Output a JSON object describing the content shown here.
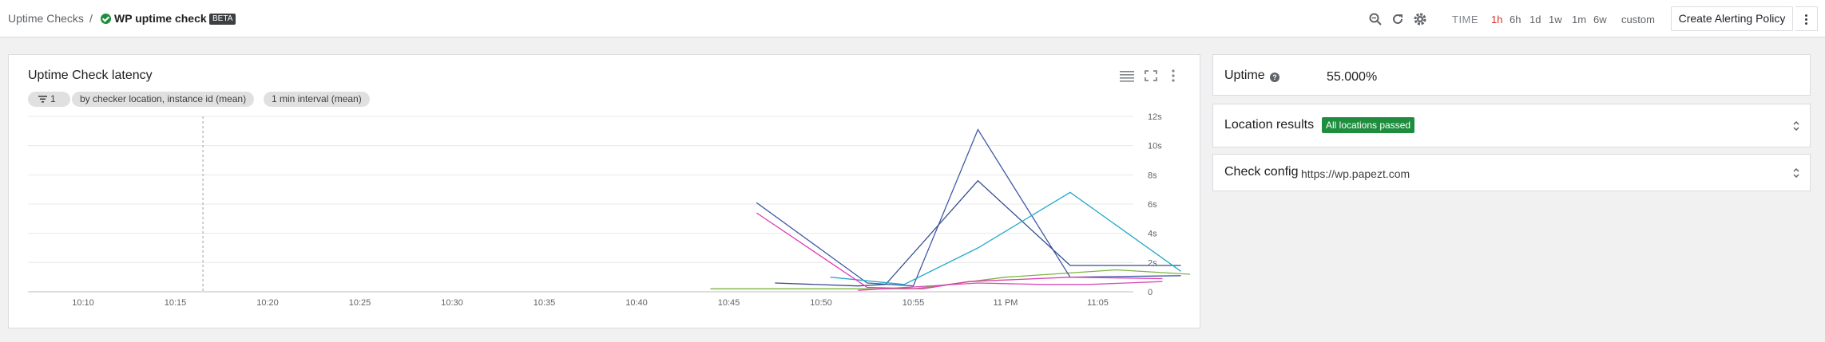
{
  "breadcrumb": {
    "parent": "Uptime Checks",
    "separator": "/",
    "current": "WP uptime check",
    "badge": "BETA"
  },
  "toolbar": {
    "icons": [
      "zoom-icon",
      "refresh-icon",
      "settings-icon"
    ],
    "time_label": "TIME",
    "ranges": [
      "1h",
      "6h",
      "1d",
      "1w",
      "1m",
      "6w",
      "custom"
    ],
    "active_range": "1h",
    "create_alert_label": "Create Alerting Policy"
  },
  "chart_card": {
    "title": "Uptime Check latency",
    "filter_count": "1",
    "group_by_chip": "by checker location, instance id (mean)",
    "interval_chip": "1 min interval (mean)",
    "icons": [
      "legend-icon",
      "fullscreen-icon",
      "more-vert-icon"
    ]
  },
  "chart_data": {
    "type": "line",
    "title": "Uptime Check latency",
    "x_ticks": [
      "10:10",
      "10:15",
      "10:20",
      "10:25",
      "10:30",
      "10:35",
      "10:40",
      "10:45",
      "10:50",
      "10:55",
      "11 PM",
      "11:05"
    ],
    "y_ticks": [
      "0",
      "2s",
      "4s",
      "6s",
      "8s",
      "10s",
      "12s"
    ],
    "ylim": [
      0,
      12
    ],
    "x_unit": "minutes after 10:10",
    "series": [
      {
        "color": "#7cb342",
        "points": [
          [
            34,
            0.2
          ],
          [
            40,
            0.2
          ],
          [
            45,
            0.2
          ],
          [
            50,
            1.0
          ],
          [
            56,
            1.5
          ],
          [
            60,
            1.2
          ]
        ]
      },
      {
        "color": "#3f5aa8",
        "points": [
          [
            36.5,
            6.1
          ],
          [
            42.5,
            0.6
          ],
          [
            45,
            0.4
          ],
          [
            48.5,
            11.1
          ],
          [
            53.5,
            1.0
          ],
          [
            59.5,
            1.1
          ]
        ]
      },
      {
        "color": "#334d8c",
        "points": [
          [
            37.5,
            0.6
          ],
          [
            42,
            0.4
          ],
          [
            43.5,
            0.5
          ],
          [
            48.5,
            7.6
          ],
          [
            53.5,
            1.8
          ],
          [
            59.5,
            1.8
          ]
        ]
      },
      {
        "color": "#26a9c9",
        "points": [
          [
            40.5,
            1.0
          ],
          [
            44.5,
            0.5
          ],
          [
            48.5,
            3.0
          ],
          [
            53.5,
            6.8
          ],
          [
            59.5,
            1.4
          ]
        ]
      },
      {
        "color": "#e33bb0",
        "points": [
          [
            36.5,
            5.4
          ],
          [
            42.5,
            0.3
          ],
          [
            45.5,
            0.2
          ],
          [
            48,
            0.7
          ],
          [
            53.5,
            1.0
          ],
          [
            58.5,
            0.9
          ]
        ]
      },
      {
        "color": "#d64db8",
        "points": [
          [
            42,
            0.1
          ],
          [
            48.5,
            0.6
          ],
          [
            52,
            0.5
          ],
          [
            54.5,
            0.5
          ],
          [
            58.5,
            0.7
          ]
        ]
      }
    ],
    "marker_x": 6.5,
    "grid": true
  },
  "uptime": {
    "label": "Uptime",
    "value": "55.000%"
  },
  "location_results": {
    "label": "Location results",
    "status": "All locations passed",
    "status_color": "#1e8e3e"
  },
  "check_config": {
    "label": "Check config",
    "url": "https://wp.papezt.com"
  }
}
